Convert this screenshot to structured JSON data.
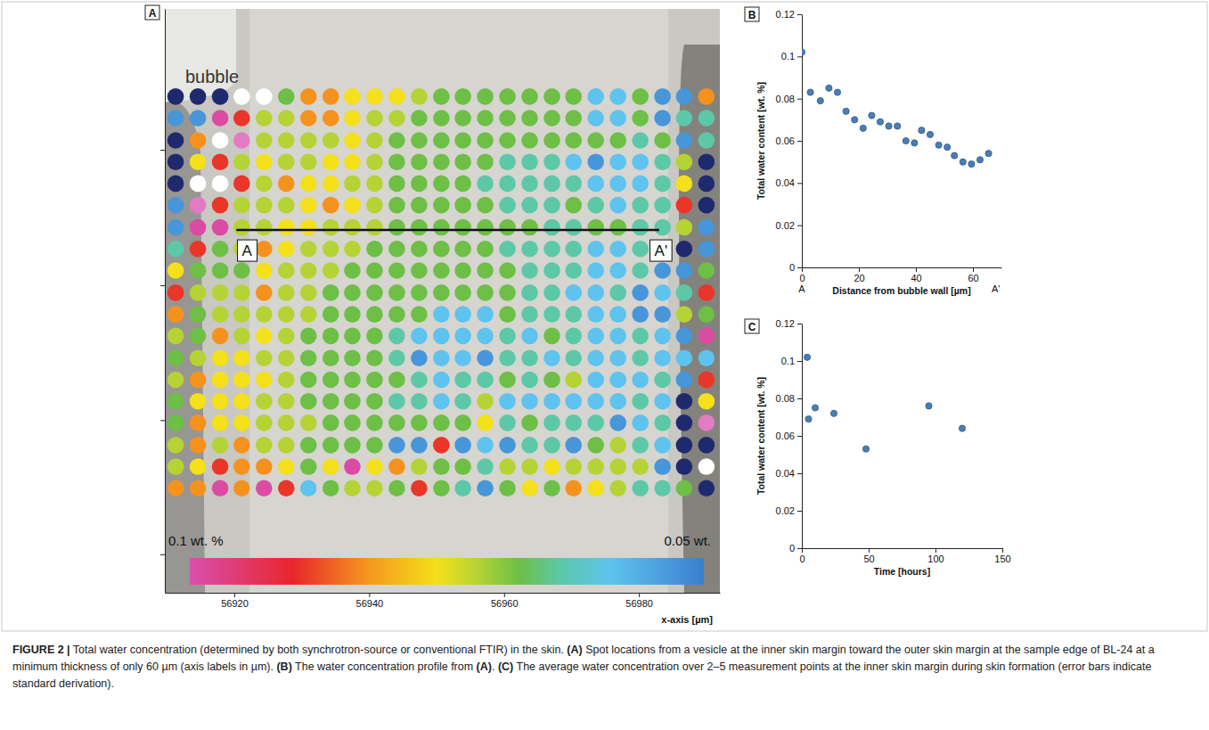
{
  "chart_data": [
    {
      "type": "heatmap",
      "panel": "A",
      "annotations": [
        {
          "text": "bubble"
        }
      ],
      "xlabel": "x-axis [µm]",
      "xlim": [
        56909.7,
        56992
      ],
      "xticks": [
        56920,
        56940,
        56960,
        56980
      ],
      "ylim": [
        0,
        86.6
      ],
      "yticks": [
        5.7,
        25.6,
        45.6,
        65.7
      ],
      "tick_labels": "x",
      "x": [
        56911.3,
        56914.6,
        56917.9,
        56921.1,
        56924.4,
        56927.7,
        56931.0,
        56934.3,
        56937.5,
        56940.8,
        56944.1,
        56947.4,
        56950.7,
        56953.9,
        56957.2,
        56960.5,
        56963.8,
        56967.1,
        56970.3,
        56973.6,
        56976.9,
        56980.2,
        56983.5,
        56986.7,
        56990.0
      ],
      "y": [
        73.6,
        70.4,
        67.1,
        63.9,
        60.7,
        57.5,
        54.2,
        51.0,
        47.8,
        44.5,
        41.3,
        38.1,
        34.8,
        31.6,
        28.4,
        25.2,
        21.9,
        18.7,
        15.5
      ],
      "cells": [
        [
          0.047,
          0.047,
          0.047,
          0.104,
          0.104,
          0.068,
          0.083,
          0.083,
          0.076,
          0.076,
          0.076,
          0.072,
          0.068,
          0.068,
          0.068,
          0.068,
          0.068,
          0.068,
          0.068,
          0.059,
          0.059,
          0.068,
          0.053,
          0.053,
          0.083
        ],
        [
          0.053,
          0.053,
          0.099,
          0.089,
          0.072,
          0.072,
          0.083,
          0.083,
          0.076,
          0.072,
          0.072,
          0.068,
          0.068,
          0.068,
          0.068,
          0.068,
          0.068,
          0.068,
          0.068,
          0.059,
          0.059,
          0.068,
          0.053,
          0.064,
          0.064
        ],
        [
          0.047,
          0.083,
          0.104,
          0.101,
          0.072,
          0.072,
          0.072,
          0.072,
          0.076,
          0.072,
          0.068,
          0.068,
          0.068,
          0.068,
          0.068,
          0.068,
          0.068,
          0.068,
          0.068,
          0.068,
          0.068,
          0.064,
          0.068,
          0.053,
          0.064
        ],
        [
          0.047,
          0.076,
          0.089,
          0.072,
          0.076,
          0.072,
          0.072,
          0.076,
          0.076,
          0.072,
          0.068,
          0.068,
          0.068,
          0.068,
          0.068,
          0.064,
          0.064,
          0.064,
          0.059,
          0.053,
          0.059,
          0.059,
          0.064,
          0.072,
          0.047
        ],
        [
          0.047,
          0.104,
          0.104,
          0.089,
          0.072,
          0.083,
          0.076,
          0.076,
          0.072,
          0.072,
          0.068,
          0.068,
          0.068,
          0.068,
          0.064,
          0.064,
          0.064,
          0.064,
          0.064,
          0.059,
          0.059,
          0.059,
          0.064,
          0.076,
          0.047
        ],
        [
          0.053,
          0.101,
          0.089,
          0.072,
          0.072,
          0.072,
          0.076,
          0.083,
          0.076,
          0.072,
          0.068,
          0.068,
          0.068,
          0.068,
          0.068,
          0.064,
          0.064,
          0.064,
          0.068,
          0.064,
          0.059,
          0.064,
          0.064,
          0.089,
          0.047
        ],
        [
          0.053,
          0.099,
          0.099,
          0.072,
          0.072,
          0.076,
          0.076,
          0.072,
          0.072,
          0.072,
          0.068,
          0.068,
          0.068,
          0.068,
          0.068,
          0.068,
          0.068,
          0.064,
          0.064,
          0.068,
          0.068,
          0.064,
          0.064,
          0.072,
          0.053
        ],
        [
          0.064,
          0.089,
          0.068,
          0.072,
          0.083,
          0.076,
          0.072,
          0.072,
          0.072,
          0.068,
          0.068,
          0.068,
          0.068,
          0.068,
          0.068,
          0.064,
          0.064,
          0.064,
          0.064,
          0.059,
          0.059,
          0.064,
          0.053,
          0.047,
          0.053
        ],
        [
          0.076,
          0.068,
          0.068,
          0.068,
          0.076,
          0.072,
          0.072,
          0.072,
          0.068,
          0.068,
          0.068,
          0.068,
          0.068,
          0.068,
          0.068,
          0.068,
          0.064,
          0.064,
          0.064,
          0.059,
          0.059,
          0.064,
          0.053,
          0.053,
          0.068
        ],
        [
          0.089,
          0.072,
          0.072,
          0.072,
          0.083,
          0.072,
          0.072,
          0.068,
          0.068,
          0.068,
          0.068,
          0.068,
          0.068,
          0.068,
          0.068,
          0.068,
          0.064,
          0.064,
          0.059,
          0.059,
          0.064,
          0.053,
          0.059,
          0.064,
          0.089
        ],
        [
          0.083,
          0.068,
          0.072,
          0.072,
          0.072,
          0.072,
          0.072,
          0.068,
          0.068,
          0.068,
          0.068,
          0.068,
          0.059,
          0.059,
          0.059,
          0.068,
          0.064,
          0.064,
          0.064,
          0.059,
          0.059,
          0.053,
          0.053,
          0.072,
          0.068
        ],
        [
          0.072,
          0.068,
          0.083,
          0.072,
          0.076,
          0.072,
          0.068,
          0.068,
          0.068,
          0.068,
          0.064,
          0.059,
          0.059,
          0.059,
          0.059,
          0.064,
          0.059,
          0.068,
          0.064,
          0.059,
          0.059,
          0.064,
          0.059,
          0.053,
          0.099
        ],
        [
          0.068,
          0.072,
          0.076,
          0.076,
          0.072,
          0.072,
          0.068,
          0.068,
          0.068,
          0.068,
          0.064,
          0.053,
          0.059,
          0.059,
          0.053,
          0.064,
          0.064,
          0.059,
          0.064,
          0.059,
          0.059,
          0.064,
          0.059,
          0.059,
          0.059
        ],
        [
          0.072,
          0.083,
          0.076,
          0.076,
          0.076,
          0.072,
          0.068,
          0.068,
          0.068,
          0.068,
          0.068,
          0.064,
          0.059,
          0.064,
          0.064,
          0.068,
          0.064,
          0.068,
          0.072,
          0.059,
          0.059,
          0.059,
          0.064,
          0.053,
          0.089
        ],
        [
          0.068,
          0.076,
          0.076,
          0.076,
          0.072,
          0.072,
          0.068,
          0.068,
          0.068,
          0.068,
          0.064,
          0.064,
          0.059,
          0.064,
          0.072,
          0.059,
          0.059,
          0.059,
          0.059,
          0.059,
          0.059,
          0.064,
          0.059,
          0.047,
          0.076
        ],
        [
          0.068,
          0.083,
          0.076,
          0.076,
          0.072,
          0.072,
          0.072,
          0.068,
          0.068,
          0.068,
          0.068,
          0.068,
          0.068,
          0.068,
          0.076,
          0.064,
          0.068,
          0.064,
          0.064,
          0.064,
          0.053,
          0.059,
          0.064,
          0.047,
          0.101
        ],
        [
          0.072,
          0.083,
          0.072,
          0.083,
          0.072,
          0.072,
          0.068,
          0.068,
          0.068,
          0.068,
          0.053,
          0.053,
          0.089,
          0.053,
          0.059,
          0.053,
          0.064,
          0.064,
          0.053,
          0.068,
          0.072,
          0.064,
          0.059,
          0.047,
          0.047
        ],
        [
          0.072,
          0.076,
          0.089,
          0.083,
          0.083,
          0.076,
          0.068,
          0.076,
          0.099,
          0.076,
          0.083,
          0.072,
          0.068,
          0.068,
          0.064,
          0.072,
          0.072,
          0.076,
          0.072,
          0.072,
          0.072,
          0.072,
          0.053,
          0.047,
          0.104
        ],
        [
          0.083,
          0.083,
          0.099,
          0.083,
          0.099,
          0.089,
          0.059,
          0.068,
          0.072,
          0.072,
          0.068,
          0.089,
          0.068,
          0.064,
          0.053,
          0.068,
          0.076,
          0.068,
          0.083,
          0.076,
          0.072,
          0.064,
          0.064,
          0.068,
          0.047
        ]
      ],
      "colorbar": {
        "range": [
          0.05,
          0.1
        ],
        "ticks": [
          {
            "value": 0.1,
            "label": "0.1 wt. %"
          },
          {
            "value": 0.05,
            "label": "0.05 wt."
          }
        ]
      },
      "profile": {
        "x": [
          56920.3,
          56983.0
        ],
        "y": 53.8,
        "labels": [
          "A",
          "A'"
        ]
      }
    },
    {
      "type": "scatter",
      "panel": "B",
      "xlabel": "Distance from bubble wall [µm]",
      "ylabel": "Total water content [wt. %]",
      "x": [
        0,
        3,
        6.5,
        9.5,
        12.5,
        15.5,
        18.5,
        21.5,
        24.5,
        27.5,
        30.5,
        33.5,
        36.5,
        39.5,
        42,
        45,
        48,
        51,
        53.5,
        56.5,
        59.5,
        62.5,
        65.5
      ],
      "values": [
        0.102,
        0.083,
        0.079,
        0.085,
        0.083,
        0.074,
        0.07,
        0.066,
        0.072,
        0.069,
        0.067,
        0.067,
        0.06,
        0.059,
        0.065,
        0.063,
        0.058,
        0.057,
        0.053,
        0.05,
        0.049,
        0.051,
        0.054
      ],
      "xlim": [
        0,
        70
      ],
      "xticks": [
        0,
        20,
        40,
        60
      ],
      "ylim": [
        0,
        0.12
      ],
      "yticks": [
        0,
        0.02,
        0.04,
        0.06,
        0.08,
        0.1,
        0.12
      ],
      "axis_end_labels": [
        {
          "value": 0,
          "label": "A"
        },
        {
          "value": 68,
          "label": "A'"
        }
      ],
      "color": "#4a7db8",
      "marker": "circle"
    },
    {
      "type": "scatter",
      "panel": "C",
      "xlabel": "Time [hours]",
      "ylabel": "Total water content [wt. %]",
      "x": [
        4,
        5,
        10,
        24,
        48,
        95,
        120
      ],
      "values": [
        0.102,
        0.069,
        0.075,
        0.072,
        0.053,
        0.076,
        0.064
      ],
      "xlim": [
        0,
        150
      ],
      "xticks": [
        0,
        50,
        100,
        150
      ],
      "ylim": [
        0,
        0.12
      ],
      "yticks": [
        0,
        0.02,
        0.04,
        0.06,
        0.08,
        0.1,
        0.12
      ],
      "color": "#4a7db8",
      "marker": "circle"
    }
  ],
  "caption": [
    {
      "text": "FIGURE 2 |",
      "bold": true
    },
    {
      "text": " Total water concentration (determined by both synchrotron-source or conventional FTIR) in the skin. "
    },
    {
      "text": "(A)",
      "bold": true
    },
    {
      "text": " Spot locations from a vesicle at the inner skin margin toward the outer skin margin at the sample edge of BL-24 at a minimum thickness of only 60 µm (axis labels in µm). "
    },
    {
      "text": "(B)",
      "bold": true
    },
    {
      "text": " The water concentration profile from "
    },
    {
      "text": "(A)",
      "bold": true
    },
    {
      "text": ". "
    },
    {
      "text": "(C)",
      "bold": true
    },
    {
      "text": " The average water concentration over 2–5 measurement points at the inner skin margin during skin formation (error bars indicate standard derivation)."
    }
  ]
}
